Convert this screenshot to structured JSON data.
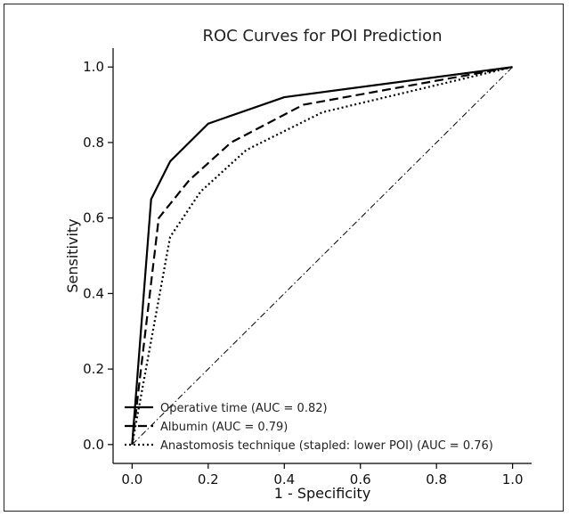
{
  "chart_data": {
    "type": "line",
    "title": "ROC Curves for POI Prediction",
    "xlabel": "1 - Specificity",
    "ylabel": "Sensitivity",
    "xlim": [
      -0.05,
      1.05
    ],
    "ylim": [
      -0.05,
      1.05
    ],
    "xticks": [
      0.0,
      0.2,
      0.4,
      0.6,
      0.8,
      1.0
    ],
    "yticks": [
      0.0,
      0.2,
      0.4,
      0.6,
      0.8,
      1.0
    ],
    "xtick_labels": [
      "0.0",
      "0.2",
      "0.4",
      "0.6",
      "0.8",
      "1.0"
    ],
    "ytick_labels": [
      "0.0",
      "0.2",
      "0.4",
      "0.6",
      "0.8",
      "1.0"
    ],
    "grid": false,
    "legend_position": "lower-left",
    "series": [
      {
        "name": "Operative time (AUC = 0.82)",
        "style": "solid",
        "color": "#000000",
        "x": [
          0.0,
          0.05,
          0.1,
          0.2,
          0.4,
          1.0
        ],
        "y": [
          0.0,
          0.65,
          0.75,
          0.85,
          0.92,
          1.0
        ]
      },
      {
        "name": "Albumin (AUC = 0.79)",
        "style": "dashed",
        "color": "#000000",
        "x": [
          0.0,
          0.07,
          0.15,
          0.26,
          0.45,
          1.0
        ],
        "y": [
          0.0,
          0.6,
          0.7,
          0.8,
          0.9,
          1.0
        ]
      },
      {
        "name": "Anastomosis technique (stapled: lower POI) (AUC = 0.76)",
        "style": "dotted",
        "color": "#000000",
        "x": [
          0.0,
          0.1,
          0.18,
          0.3,
          0.5,
          1.0
        ],
        "y": [
          0.0,
          0.55,
          0.67,
          0.78,
          0.88,
          1.0
        ]
      }
    ],
    "reference_line": {
      "style": "dashdot",
      "color": "#000000",
      "x": [
        0.0,
        1.0
      ],
      "y": [
        0.0,
        1.0
      ]
    }
  }
}
